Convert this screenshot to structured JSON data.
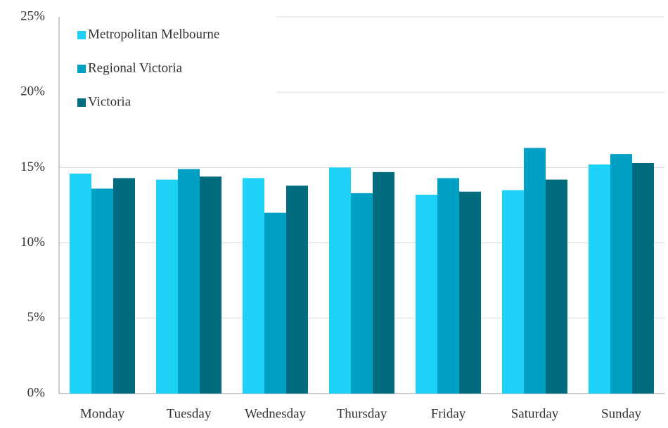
{
  "chart_data": {
    "type": "bar",
    "categories": [
      "Monday",
      "Tuesday",
      "Wednesday",
      "Thursday",
      "Friday",
      "Saturday",
      "Sunday"
    ],
    "series": [
      {
        "name": "Metropolitan Melbourne",
        "color": "#1dd1f7",
        "values": [
          14.6,
          14.2,
          14.3,
          15.0,
          13.2,
          13.5,
          15.2
        ]
      },
      {
        "name": "Regional Victoria",
        "color": "#00a0c4",
        "values": [
          13.6,
          14.9,
          12.0,
          13.3,
          14.3,
          16.3,
          15.9
        ]
      },
      {
        "name": "Victoria",
        "color": "#006c7e",
        "values": [
          14.3,
          14.4,
          13.8,
          14.7,
          13.4,
          14.2,
          15.3
        ]
      }
    ],
    "ylim": [
      0,
      25
    ],
    "yticks": [
      {
        "value": 0,
        "label": "0%"
      },
      {
        "value": 5,
        "label": "5%"
      },
      {
        "value": 10,
        "label": "10%"
      },
      {
        "value": 15,
        "label": "15%"
      },
      {
        "value": 20,
        "label": "20%"
      },
      {
        "value": 25,
        "label": "25%"
      }
    ],
    "grid": true,
    "legend": "upper left"
  }
}
